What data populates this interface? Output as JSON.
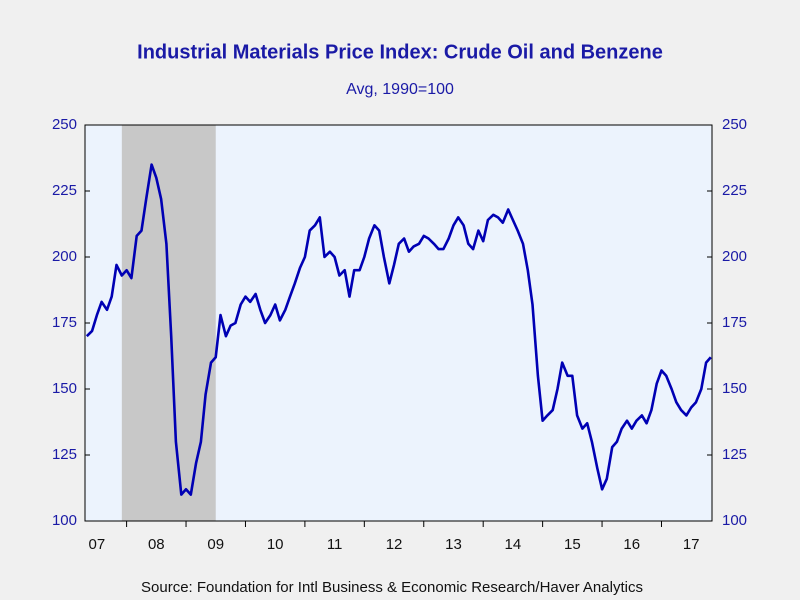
{
  "chart_data": {
    "type": "line",
    "title": "Industrial Materials Price Index: Crude Oil and Benzene",
    "subtitle": "Avg, 1990=100",
    "source": "Source:  Foundation for Intl Business & Economic Research/Haver Analytics",
    "xlim": [
      2007.3,
      2017.85
    ],
    "xticks": [
      {
        "value": 2007,
        "label": "07"
      },
      {
        "value": 2008,
        "label": "08"
      },
      {
        "value": 2009,
        "label": "09"
      },
      {
        "value": 2010,
        "label": "10"
      },
      {
        "value": 2011,
        "label": "11"
      },
      {
        "value": 2012,
        "label": "12"
      },
      {
        "value": 2013,
        "label": "13"
      },
      {
        "value": 2014,
        "label": "14"
      },
      {
        "value": 2015,
        "label": "15"
      },
      {
        "value": 2016,
        "label": "16"
      },
      {
        "value": 2017,
        "label": "17"
      }
    ],
    "ylim": [
      100,
      250
    ],
    "yticks": [
      100,
      125,
      150,
      175,
      200,
      225,
      250
    ],
    "recession": [
      2007.92,
      2009.5
    ],
    "x": [
      2007.33,
      2007.42,
      2007.5,
      2007.58,
      2007.67,
      2007.75,
      2007.83,
      2007.92,
      2008.0,
      2008.08,
      2008.17,
      2008.25,
      2008.33,
      2008.42,
      2008.5,
      2008.58,
      2008.67,
      2008.75,
      2008.83,
      2008.92,
      2009.0,
      2009.08,
      2009.17,
      2009.25,
      2009.33,
      2009.42,
      2009.5,
      2009.58,
      2009.67,
      2009.75,
      2009.83,
      2009.92,
      2010.0,
      2010.08,
      2010.17,
      2010.25,
      2010.33,
      2010.42,
      2010.5,
      2010.58,
      2010.67,
      2010.75,
      2010.83,
      2010.92,
      2011.0,
      2011.08,
      2011.17,
      2011.25,
      2011.33,
      2011.42,
      2011.5,
      2011.58,
      2011.67,
      2011.75,
      2011.83,
      2011.92,
      2012.0,
      2012.08,
      2012.17,
      2012.25,
      2012.33,
      2012.42,
      2012.5,
      2012.58,
      2012.67,
      2012.75,
      2012.83,
      2012.92,
      2013.0,
      2013.08,
      2013.17,
      2013.25,
      2013.33,
      2013.42,
      2013.5,
      2013.58,
      2013.67,
      2013.75,
      2013.83,
      2013.92,
      2014.0,
      2014.08,
      2014.17,
      2014.25,
      2014.33,
      2014.42,
      2014.5,
      2014.58,
      2014.67,
      2014.75,
      2014.83,
      2014.92,
      2015.0,
      2015.08,
      2015.17,
      2015.25,
      2015.33,
      2015.42,
      2015.5,
      2015.58,
      2015.67,
      2015.75,
      2015.83,
      2015.92,
      2016.0,
      2016.08,
      2016.17,
      2016.25,
      2016.33,
      2016.42,
      2016.5,
      2016.58,
      2016.67,
      2016.75,
      2016.83,
      2016.92,
      2017.0,
      2017.08,
      2017.17,
      2017.25,
      2017.33,
      2017.42,
      2017.5,
      2017.58,
      2017.67,
      2017.75,
      2017.83
    ],
    "series": [
      {
        "color": "#0000b4",
        "values": [
          170,
          172,
          178,
          183,
          180,
          185,
          197,
          193,
          195,
          192,
          208,
          210,
          222,
          235,
          230,
          222,
          205,
          170,
          130,
          110,
          112,
          110,
          122,
          130,
          148,
          160,
          162,
          178,
          170,
          174,
          175,
          182,
          185,
          183,
          186,
          180,
          175,
          178,
          182,
          176,
          180,
          185,
          190,
          196,
          200,
          210,
          212,
          215,
          200,
          202,
          200,
          193,
          195,
          185,
          195,
          195,
          200,
          207,
          212,
          210,
          200,
          190,
          197,
          205,
          207,
          202,
          204,
          205,
          208,
          207,
          205,
          203,
          203,
          207,
          212,
          215,
          212,
          205,
          203,
          210,
          206,
          214,
          216,
          215,
          213,
          218,
          214,
          210,
          205,
          195,
          182,
          155,
          138,
          140,
          142,
          150,
          160,
          155,
          155,
          140,
          135,
          137,
          130,
          120,
          112,
          116,
          128,
          130,
          135,
          138,
          135,
          138,
          140,
          137,
          142,
          152,
          157,
          155,
          150,
          145,
          142,
          140,
          143,
          145,
          150,
          160,
          162
        ]
      }
    ]
  }
}
